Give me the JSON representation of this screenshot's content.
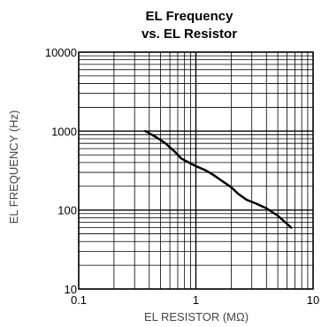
{
  "chart_data": {
    "type": "line",
    "title": [
      "EL Frequency",
      "vs. EL Resistor"
    ],
    "xlabel": "EL RESISTOR (MΩ)",
    "ylabel": "EL FREQUENCY (Hz)",
    "xscale": "log",
    "yscale": "log",
    "xlim": [
      0.1,
      10
    ],
    "ylim": [
      10,
      10000
    ],
    "xticks": [
      {
        "value": 0.1,
        "label": "0.1"
      },
      {
        "value": 1,
        "label": "1"
      },
      {
        "value": 10,
        "label": "10"
      }
    ],
    "yticks": [
      {
        "value": 10,
        "label": "10"
      },
      {
        "value": 100,
        "label": "100"
      },
      {
        "value": 1000,
        "label": "1000"
      },
      {
        "value": 10000,
        "label": "10000"
      }
    ],
    "grid": true,
    "series": [
      {
        "color": "#000000",
        "points": [
          [
            0.37,
            1000
          ],
          [
            0.45,
            850
          ],
          [
            0.55,
            700
          ],
          [
            0.65,
            560
          ],
          [
            0.75,
            450
          ],
          [
            0.9,
            390
          ],
          [
            1.0,
            360
          ],
          [
            1.2,
            320
          ],
          [
            1.4,
            280
          ],
          [
            1.7,
            230
          ],
          [
            2.0,
            195
          ],
          [
            2.3,
            160
          ],
          [
            2.7,
            135
          ],
          [
            3.3,
            120
          ],
          [
            4.0,
            105
          ],
          [
            5.0,
            85
          ],
          [
            6.5,
            60
          ]
        ]
      }
    ]
  }
}
